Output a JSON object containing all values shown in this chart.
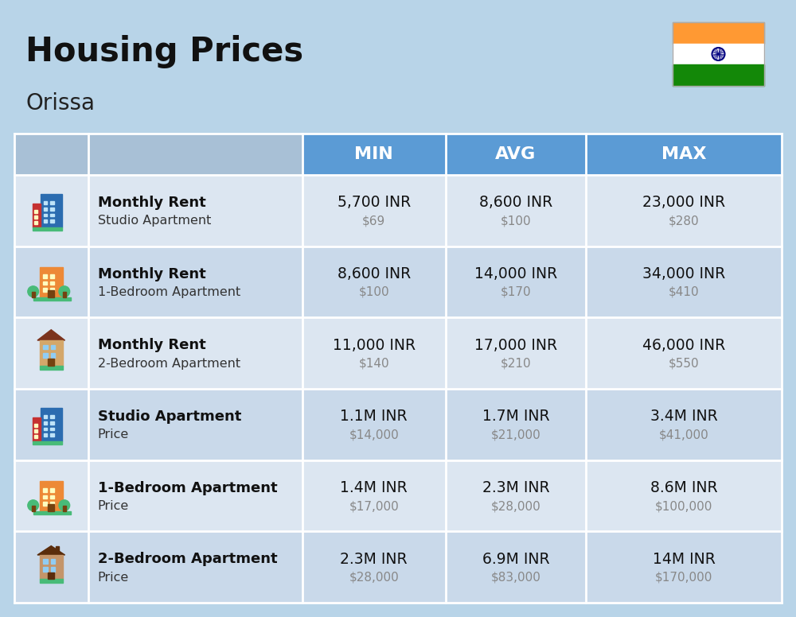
{
  "title": "Housing Prices",
  "subtitle": "Orissa",
  "bg_color": "#b8d4e8",
  "header_bg": "#5b9bd5",
  "header_text_color": "#ffffff",
  "row_bg_odd": "#dce6f1",
  "row_bg_even": "#c9d9ea",
  "table_bg": "#dce6f1",
  "col_header_labels": [
    "MIN",
    "AVG",
    "MAX"
  ],
  "rows": [
    {
      "icon_type": "studio_blue",
      "label_bold": "Monthly Rent",
      "label_sub": "Studio Apartment",
      "min_inr": "5,700 INR",
      "min_usd": "$69",
      "avg_inr": "8,600 INR",
      "avg_usd": "$100",
      "max_inr": "23,000 INR",
      "max_usd": "$280"
    },
    {
      "icon_type": "apt_orange",
      "label_bold": "Monthly Rent",
      "label_sub": "1-Bedroom Apartment",
      "min_inr": "8,600 INR",
      "min_usd": "$100",
      "avg_inr": "14,000 INR",
      "avg_usd": "$170",
      "max_inr": "34,000 INR",
      "max_usd": "$410"
    },
    {
      "icon_type": "apt_beige",
      "label_bold": "Monthly Rent",
      "label_sub": "2-Bedroom Apartment",
      "min_inr": "11,000 INR",
      "min_usd": "$140",
      "avg_inr": "17,000 INR",
      "avg_usd": "$210",
      "max_inr": "46,000 INR",
      "max_usd": "$550"
    },
    {
      "icon_type": "studio_blue",
      "label_bold": "Studio Apartment",
      "label_sub": "Price",
      "min_inr": "1.1M INR",
      "min_usd": "$14,000",
      "avg_inr": "1.7M INR",
      "avg_usd": "$21,000",
      "max_inr": "3.4M INR",
      "max_usd": "$41,000"
    },
    {
      "icon_type": "apt_orange",
      "label_bold": "1-Bedroom Apartment",
      "label_sub": "Price",
      "min_inr": "1.4M INR",
      "min_usd": "$17,000",
      "avg_inr": "2.3M INR",
      "avg_usd": "$28,000",
      "max_inr": "8.6M INR",
      "max_usd": "$100,000"
    },
    {
      "icon_type": "apt_brown",
      "label_bold": "2-Bedroom Apartment",
      "label_sub": "Price",
      "min_inr": "2.3M INR",
      "min_usd": "$28,000",
      "avg_inr": "6.9M INR",
      "avg_usd": "$83,000",
      "max_inr": "14M INR",
      "max_usd": "$170,000"
    }
  ]
}
